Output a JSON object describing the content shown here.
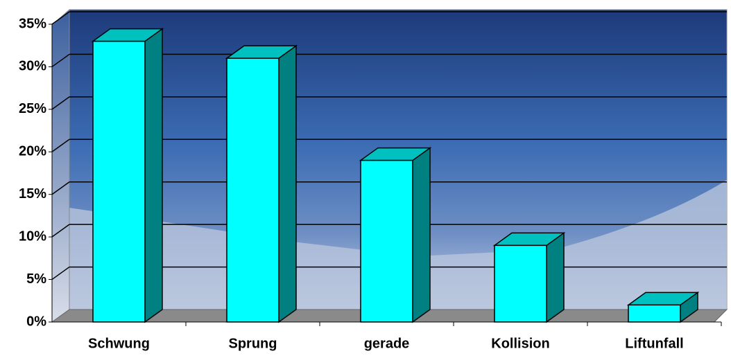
{
  "chart_data": {
    "type": "bar3d",
    "categories": [
      "Schwung",
      "Sprung",
      "gerade",
      "Kollision",
      "Liftunfall"
    ],
    "values": [
      33,
      31,
      19,
      9,
      2
    ],
    "color": "#00ffff",
    "ylim": [
      0,
      35
    ],
    "yticks": [
      {
        "value": 0,
        "label": "0%"
      },
      {
        "value": 5,
        "label": "5%"
      },
      {
        "value": 10,
        "label": "10%"
      },
      {
        "value": 15,
        "label": "15%"
      },
      {
        "value": 20,
        "label": "20%"
      },
      {
        "value": 25,
        "label": "25%"
      },
      {
        "value": 30,
        "label": "30%"
      },
      {
        "value": 35,
        "label": "35%"
      }
    ],
    "grid": true
  }
}
